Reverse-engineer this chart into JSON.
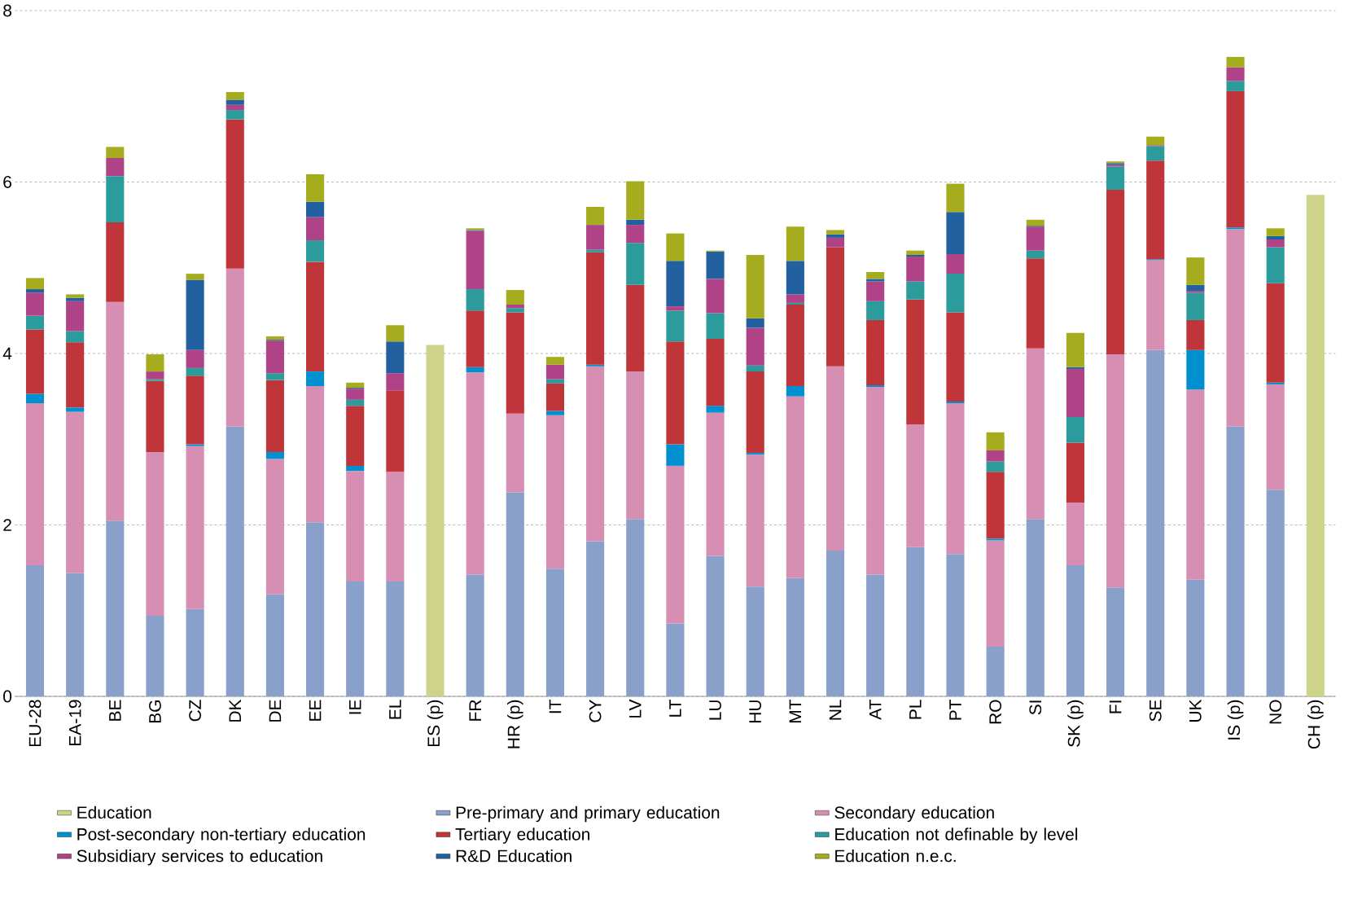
{
  "chart_data": {
    "type": "bar",
    "stacked": true,
    "grid": "y",
    "legend": "bottom",
    "categories": [
      "EU-28",
      "EA-19",
      "BE",
      "BG",
      "CZ",
      "DK",
      "DE",
      "EE",
      "IE",
      "EL",
      "ES (p)",
      "FR",
      "HR (p)",
      "IT",
      "CY",
      "LV",
      "LT",
      "LU",
      "HU",
      "MT",
      "NL",
      "AT",
      "PL",
      "PT",
      "RO",
      "SI",
      "SK (p)",
      "FI",
      "SE",
      "UK",
      "IS (p)",
      "NO",
      "CH (p)"
    ],
    "ylim": [
      0,
      8
    ],
    "yticks": [
      0,
      2,
      4,
      6,
      8
    ],
    "series": [
      {
        "name": "Education",
        "color": "#cdd48a",
        "values": [
          null,
          null,
          null,
          null,
          null,
          null,
          null,
          null,
          null,
          null,
          4.1,
          null,
          null,
          null,
          null,
          null,
          null,
          null,
          null,
          null,
          null,
          null,
          null,
          null,
          null,
          null,
          null,
          null,
          null,
          null,
          null,
          null,
          5.85
        ]
      },
      {
        "name": "Pre-primary and primary education",
        "color": "#88a0ca",
        "values": [
          1.53,
          1.44,
          2.05,
          0.94,
          1.02,
          3.15,
          1.19,
          2.03,
          1.34,
          1.34,
          null,
          1.42,
          2.38,
          1.49,
          1.81,
          2.07,
          0.85,
          1.64,
          1.28,
          1.38,
          1.7,
          1.42,
          1.74,
          1.66,
          0.58,
          2.07,
          1.53,
          1.27,
          4.04,
          1.36,
          3.15,
          2.41,
          null
        ]
      },
      {
        "name": "Secondary education",
        "color": "#d68fb3",
        "values": [
          1.89,
          1.88,
          2.55,
          1.91,
          1.9,
          1.84,
          1.58,
          1.59,
          1.29,
          1.28,
          null,
          2.36,
          0.92,
          1.79,
          2.04,
          1.72,
          1.84,
          1.67,
          1.54,
          2.12,
          2.15,
          2.19,
          1.43,
          1.76,
          1.24,
          1.99,
          0.73,
          2.72,
          1.05,
          2.22,
          2.3,
          1.23,
          null
        ]
      },
      {
        "name": "Post-secondary non-tertiary education",
        "color": "#0090d0",
        "values": [
          0.11,
          0.05,
          0,
          0,
          0.02,
          0,
          0.08,
          0.17,
          0.06,
          0,
          null,
          0.06,
          0,
          0.05,
          0.02,
          0,
          0.25,
          0.08,
          0.02,
          0.12,
          0,
          0.02,
          0,
          0.02,
          0.02,
          0,
          0,
          0,
          0.01,
          0.46,
          0.02,
          0.02,
          null
        ]
      },
      {
        "name": "Tertiary education",
        "color": "#c0353a",
        "values": [
          0.75,
          0.76,
          0.93,
          0.83,
          0.8,
          1.74,
          0.84,
          1.28,
          0.7,
          0.95,
          null,
          0.66,
          1.18,
          0.32,
          1.31,
          1.01,
          1.2,
          0.78,
          0.95,
          0.95,
          1.39,
          0.76,
          1.46,
          1.04,
          0.78,
          1.05,
          0.7,
          1.92,
          1.15,
          0.35,
          1.59,
          1.16,
          null
        ]
      },
      {
        "name": "Education not definable by level",
        "color": "#2b9b9b",
        "values": [
          0.16,
          0.13,
          0.54,
          0.02,
          0.09,
          0.11,
          0.08,
          0.25,
          0.07,
          0,
          null,
          0.25,
          0.05,
          0.05,
          0.03,
          0.49,
          0.36,
          0.3,
          0.07,
          0.02,
          0,
          0.22,
          0.21,
          0.45,
          0.12,
          0.09,
          0.3,
          0.27,
          0.17,
          0.32,
          0.12,
          0.42,
          null
        ]
      },
      {
        "name": "Subsidiary services to education",
        "color": "#b04287",
        "values": [
          0.27,
          0.35,
          0.21,
          0.09,
          0.21,
          0.06,
          0.38,
          0.27,
          0.13,
          0.2,
          null,
          0.68,
          0.04,
          0.17,
          0.29,
          0.21,
          0.05,
          0.4,
          0.44,
          0.1,
          0.11,
          0.23,
          0.29,
          0.23,
          0.13,
          0.28,
          0.56,
          0.02,
          0.01,
          0.02,
          0.16,
          0.09,
          null
        ]
      },
      {
        "name": "R&D Education",
        "color": "#23609f",
        "values": [
          0.04,
          0.04,
          0,
          0,
          0.82,
          0.06,
          0.01,
          0.18,
          0.01,
          0.37,
          null,
          0.01,
          0,
          0,
          0,
          0.06,
          0.53,
          0.32,
          0.11,
          0.39,
          0.04,
          0.03,
          0.02,
          0.49,
          0,
          0.01,
          0.02,
          0.02,
          0,
          0.07,
          0,
          0.04,
          null
        ]
      },
      {
        "name": "Education n.e.c.",
        "color": "#a5ac1d",
        "values": [
          0.13,
          0.04,
          0.13,
          0.2,
          0.07,
          0.09,
          0.04,
          0.32,
          0.06,
          0.19,
          null,
          0.02,
          0.17,
          0.09,
          0.21,
          0.45,
          0.32,
          0.01,
          0.74,
          0.4,
          0.05,
          0.08,
          0.05,
          0.33,
          0.21,
          0.07,
          0.4,
          0.02,
          0.1,
          0.32,
          0.12,
          0.09,
          null
        ]
      }
    ]
  }
}
